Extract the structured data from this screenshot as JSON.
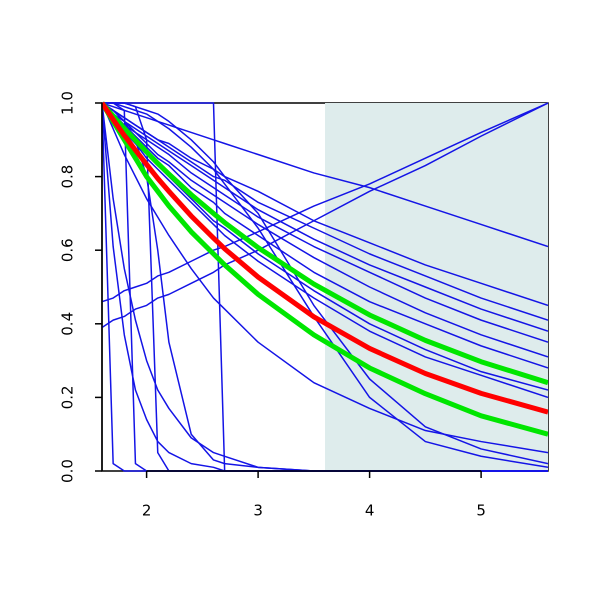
{
  "chart_data": {
    "type": "line",
    "x": [
      1.6,
      1.7,
      1.8,
      1.9,
      2.0,
      2.1,
      2.2,
      2.4,
      2.6,
      2.7,
      3.0,
      3.5,
      4.0,
      4.5,
      5.0,
      5.6
    ],
    "xlim": [
      1.6,
      5.6
    ],
    "ylim": [
      0,
      1
    ],
    "xticks": [
      2,
      3,
      4,
      5
    ],
    "yticks": [
      {
        "value": 0,
        "label": "0.0"
      },
      {
        "value": 0.2,
        "label": "0.2"
      },
      {
        "value": 0.4,
        "label": "0.4"
      },
      {
        "value": 0.6,
        "label": "0.6"
      },
      {
        "value": 0.8,
        "label": "0.8"
      },
      {
        "value": 1,
        "label": "1.0"
      }
    ],
    "highlight_range": [
      3.6,
      5.6
    ],
    "highlight_color": "#deecec",
    "series": [
      {
        "color": "#1414e6",
        "line_width": 1.5,
        "values": [
          1,
          0.99,
          0.98,
          0.97,
          0.96,
          0.95,
          0.94,
          0.92,
          0.9,
          0.89,
          0.86,
          0.81,
          0.77,
          0.72,
          0.67,
          0.61
        ]
      },
      {
        "color": "#1414e6",
        "line_width": 1.5,
        "values": [
          0.39,
          0.41,
          0.42,
          0.44,
          0.45,
          0.47,
          0.48,
          0.51,
          0.54,
          0.56,
          0.6,
          0.68,
          0.76,
          0.83,
          0.91,
          1
        ]
      },
      {
        "color": "#1414e6",
        "line_width": 1.5,
        "values": [
          0.46,
          0.47,
          0.49,
          0.5,
          0.51,
          0.53,
          0.54,
          0.57,
          0.6,
          0.61,
          0.65,
          0.72,
          0.78,
          0.85,
          0.92,
          1
        ]
      },
      {
        "color": "#1414e6",
        "line_width": 1.5,
        "values": [
          1,
          1,
          1,
          1,
          1,
          1,
          1,
          1,
          1,
          0,
          0,
          0,
          0,
          0,
          0,
          0
        ]
      },
      {
        "color": "#1414e6",
        "line_width": 1.5,
        "values": [
          1,
          0.02,
          0,
          0,
          0,
          0,
          0,
          0,
          0,
          0,
          0,
          0,
          0,
          0,
          0,
          0
        ]
      },
      {
        "color": "#1414e6",
        "line_width": 1.5,
        "values": [
          1,
          1,
          0.98,
          0.02,
          0,
          0,
          0,
          0,
          0,
          0,
          0,
          0,
          0,
          0,
          0,
          0
        ]
      },
      {
        "color": "#1414e6",
        "line_width": 1.5,
        "values": [
          1,
          1,
          1,
          0.99,
          0.9,
          0.05,
          0,
          0,
          0,
          0,
          0,
          0,
          0,
          0,
          0,
          0
        ]
      },
      {
        "color": "#1414e6",
        "line_width": 1.5,
        "values": [
          1,
          0.61,
          0.37,
          0.22,
          0.14,
          0.08,
          0.05,
          0.02,
          0.01,
          0,
          0,
          0,
          0,
          0,
          0,
          0
        ]
      },
      {
        "color": "#1414e6",
        "line_width": 1.5,
        "values": [
          1,
          0.74,
          0.55,
          0.41,
          0.3,
          0.22,
          0.17,
          0.09,
          0.05,
          0.04,
          0.01,
          0,
          0,
          0,
          0,
          0
        ]
      },
      {
        "color": "#1414e6",
        "line_width": 1.5,
        "values": [
          1,
          0.98,
          0.95,
          0.9,
          0.8,
          0.6,
          0.35,
          0.1,
          0.03,
          0.02,
          0.01,
          0,
          0,
          0,
          0,
          0
        ]
      },
      {
        "color": "#1414e6",
        "line_width": 1.5,
        "values": [
          1,
          1,
          1,
          0.99,
          0.98,
          0.97,
          0.95,
          0.9,
          0.84,
          0.8,
          0.7,
          0.45,
          0.25,
          0.12,
          0.06,
          0.02
        ]
      },
      {
        "color": "#1414e6",
        "line_width": 1.5,
        "values": [
          1,
          1,
          0.99,
          0.98,
          0.97,
          0.95,
          0.93,
          0.88,
          0.82,
          0.78,
          0.66,
          0.42,
          0.2,
          0.08,
          0.04,
          0.01
        ]
      },
      {
        "color": "#1414e6",
        "line_width": 1.5,
        "values": [
          1,
          0.98,
          0.96,
          0.94,
          0.92,
          0.9,
          0.89,
          0.85,
          0.82,
          0.8,
          0.76,
          0.68,
          0.62,
          0.56,
          0.51,
          0.45
        ]
      },
      {
        "color": "#1414e6",
        "line_width": 1.5,
        "values": [
          1,
          0.98,
          0.96,
          0.94,
          0.92,
          0.9,
          0.88,
          0.84,
          0.8,
          0.79,
          0.73,
          0.66,
          0.59,
          0.53,
          0.47,
          0.41
        ]
      },
      {
        "color": "#1414e6",
        "line_width": 1.5,
        "values": [
          1,
          0.98,
          0.95,
          0.93,
          0.91,
          0.89,
          0.87,
          0.83,
          0.79,
          0.77,
          0.71,
          0.63,
          0.56,
          0.5,
          0.44,
          0.38
        ]
      },
      {
        "color": "#1414e6",
        "line_width": 1.5,
        "values": [
          1,
          0.97,
          0.95,
          0.92,
          0.9,
          0.88,
          0.86,
          0.81,
          0.77,
          0.75,
          0.69,
          0.61,
          0.54,
          0.47,
          0.41,
          0.35
        ]
      },
      {
        "color": "#1414e6",
        "line_width": 1.5,
        "values": [
          1,
          0.97,
          0.94,
          0.92,
          0.89,
          0.86,
          0.84,
          0.79,
          0.75,
          0.73,
          0.67,
          0.58,
          0.5,
          0.43,
          0.37,
          0.31
        ]
      },
      {
        "color": "#1414e6",
        "line_width": 1.5,
        "values": [
          1,
          0.97,
          0.94,
          0.91,
          0.88,
          0.85,
          0.83,
          0.77,
          0.73,
          0.7,
          0.64,
          0.54,
          0.46,
          0.4,
          0.34,
          0.28
        ]
      },
      {
        "color": "#1414e6",
        "line_width": 1.5,
        "values": [
          1,
          0.96,
          0.93,
          0.89,
          0.86,
          0.83,
          0.8,
          0.74,
          0.68,
          0.66,
          0.59,
          0.49,
          0.4,
          0.33,
          0.27,
          0.22
        ]
      },
      {
        "color": "#1414e6",
        "line_width": 1.5,
        "values": [
          1,
          0.96,
          0.92,
          0.89,
          0.85,
          0.82,
          0.79,
          0.73,
          0.67,
          0.64,
          0.57,
          0.47,
          0.38,
          0.31,
          0.26,
          0.2
        ]
      },
      {
        "color": "#1414e6",
        "line_width": 1.5,
        "values": [
          1,
          0.93,
          0.86,
          0.8,
          0.74,
          0.69,
          0.64,
          0.55,
          0.47,
          0.44,
          0.35,
          0.24,
          0.17,
          0.11,
          0.08,
          0.05
        ]
      },
      {
        "color": "#00e600",
        "line_width": 5,
        "values": [
          1,
          0.965,
          0.931,
          0.899,
          0.867,
          0.836,
          0.807,
          0.751,
          0.7,
          0.675,
          0.607,
          0.508,
          0.424,
          0.355,
          0.297,
          0.24
        ]
      },
      {
        "color": "#00e600",
        "line_width": 5,
        "values": [
          1,
          0.95,
          0.9,
          0.85,
          0.8,
          0.76,
          0.72,
          0.65,
          0.59,
          0.56,
          0.48,
          0.37,
          0.28,
          0.21,
          0.15,
          0.1
        ]
      },
      {
        "color": "#ff0000",
        "line_width": 5,
        "values": [
          1,
          0.955,
          0.912,
          0.872,
          0.833,
          0.795,
          0.76,
          0.693,
          0.633,
          0.604,
          0.527,
          0.419,
          0.333,
          0.265,
          0.211,
          0.16
        ]
      }
    ]
  }
}
